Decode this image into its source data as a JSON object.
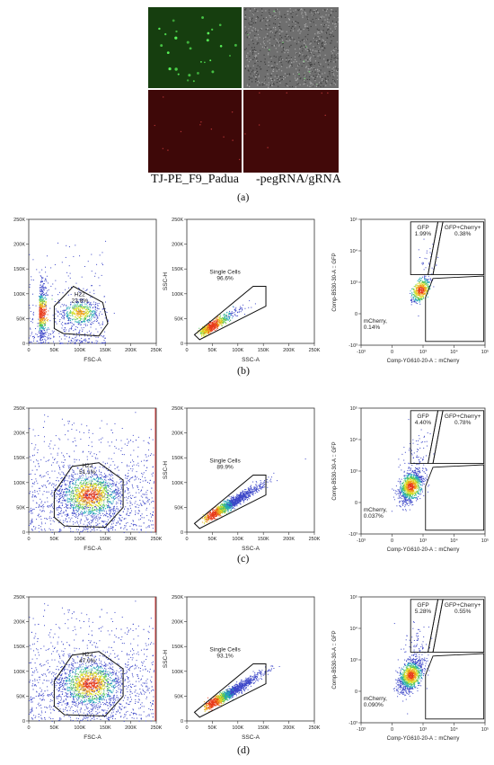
{
  "microscopy": {
    "captions": [
      "TJ-PE_F9_Padua",
      "-pegRNA/gRNA"
    ],
    "colors": {
      "green_channel": "#1a4a12",
      "red_channel": "#4a0a0a",
      "brightfield": "#7a7a7a"
    }
  },
  "panel_labels": [
    "(a)",
    "(b)",
    "(c)",
    "(d)"
  ],
  "axes": {
    "fsc_ssc_y_ticks": [
      "0",
      "50K",
      "100K",
      "150K",
      "200K",
      "250K"
    ],
    "fsc_x_ticks": [
      "0",
      "50K",
      "100K",
      "150K",
      "200K",
      "250K"
    ],
    "ssc_x_ticks": [
      "0",
      "50K",
      "100K",
      "150K",
      "200K",
      "250K"
    ],
    "fsc_xlabel": "FSC-A",
    "ssc_xlabel": "SSC-A",
    "ssch_ylabel": "SSC-H",
    "fl_y_ticks": [
      "-10³",
      "0",
      "10³",
      "10⁴",
      "10⁵"
    ],
    "fl_x_ticks": [
      "-10³",
      "0",
      "10³",
      "10⁴",
      "10⁵"
    ],
    "fl_ylabel": "Comp-B530-30-A :: GFP",
    "fl_xlabel": "Comp-YG610-20-A :: mCherry"
  },
  "chart_data": [
    {
      "panel": "(b)",
      "type": "scatter",
      "plots": [
        {
          "name": "fsc-ssc",
          "gate_label": "H22",
          "gate_value": "23.8%",
          "x_range": [
            0,
            262144
          ],
          "y_range": [
            0,
            262144
          ]
        },
        {
          "name": "ssc-singlets",
          "gate_label": "Single Cells",
          "gate_value": "96.6%",
          "x_range": [
            0,
            262144
          ],
          "y_range": [
            0,
            262144
          ]
        },
        {
          "name": "gfp-mcherry",
          "gates": [
            {
              "label": "GFP",
              "value": "1.99%"
            },
            {
              "label": "GFP+Cherry+",
              "value": "0.38%"
            },
            {
              "label": "mCherry,",
              "value": "0.14%"
            }
          ]
        }
      ]
    },
    {
      "panel": "(c)",
      "type": "scatter",
      "plots": [
        {
          "name": "fsc-ssc",
          "gate_label": "H22",
          "gate_value": "51.1%",
          "x_range": [
            0,
            262144
          ],
          "y_range": [
            0,
            262144
          ]
        },
        {
          "name": "ssc-singlets",
          "gate_label": "Single Cells",
          "gate_value": "89.9%",
          "x_range": [
            0,
            262144
          ],
          "y_range": [
            0,
            262144
          ]
        },
        {
          "name": "gfp-mcherry",
          "gates": [
            {
              "label": "GFP",
              "value": "4.40%"
            },
            {
              "label": "GFP+Cherry+",
              "value": "0.78%"
            },
            {
              "label": "mCherry,",
              "value": "0.037%"
            }
          ]
        }
      ]
    },
    {
      "panel": "(d)",
      "type": "scatter",
      "plots": [
        {
          "name": "fsc-ssc",
          "gate_label": "H22",
          "gate_value": "47.0%",
          "x_range": [
            0,
            262144
          ],
          "y_range": [
            0,
            262144
          ]
        },
        {
          "name": "ssc-singlets",
          "gate_label": "Single Cells",
          "gate_value": "93.1%",
          "x_range": [
            0,
            262144
          ],
          "y_range": [
            0,
            262144
          ]
        },
        {
          "name": "gfp-mcherry",
          "gates": [
            {
              "label": "GFP",
              "value": "5.28%"
            },
            {
              "label": "GFP+Cherry+",
              "value": "0.55%"
            },
            {
              "label": "mCherry,",
              "value": "0.090%"
            }
          ]
        }
      ]
    }
  ]
}
